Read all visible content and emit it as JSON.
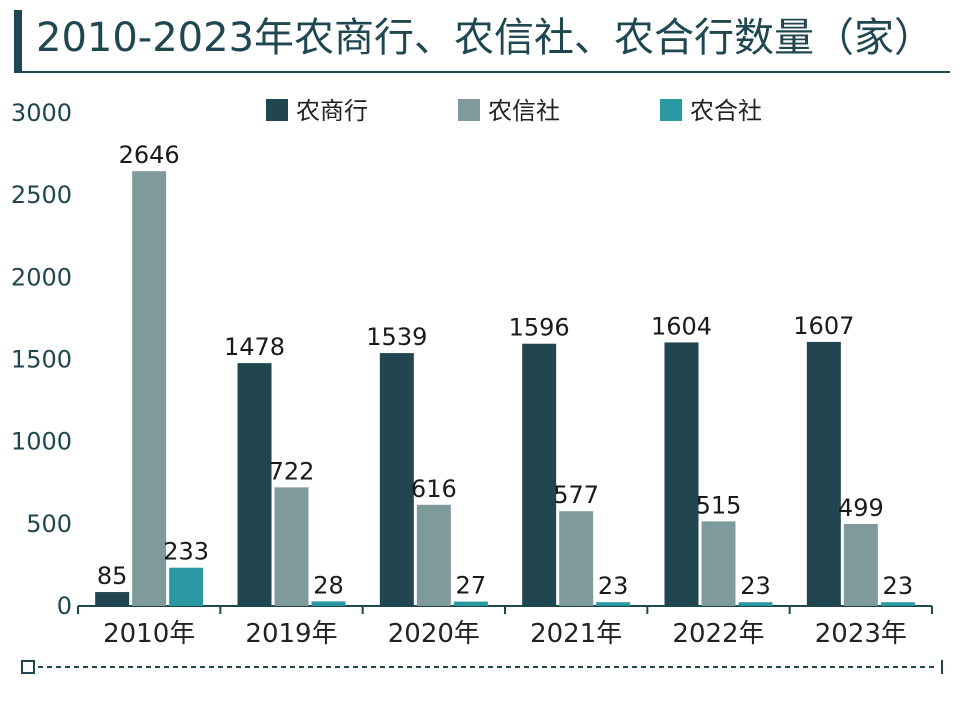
{
  "title": "2010-2023年农商行、农信社、农合行数量（家）",
  "chart_data": {
    "type": "bar",
    "title": "2010-2023年农商行、农信社、农合行数量（家）",
    "xlabel": "",
    "ylabel": "",
    "categories": [
      "2010年",
      "2019年",
      "2020年",
      "2021年",
      "2022年",
      "2023年"
    ],
    "series": [
      {
        "name": "农商行",
        "color": "#224650",
        "values": [
          85,
          1478,
          1539,
          1596,
          1604,
          1607
        ]
      },
      {
        "name": "农信社",
        "color": "#7f9a9b",
        "values": [
          2646,
          722,
          616,
          577,
          515,
          499
        ]
      },
      {
        "name": "农合社",
        "color": "#2a98a1",
        "values": [
          233,
          28,
          27,
          23,
          23,
          23
        ]
      }
    ],
    "ylim": [
      0,
      3000
    ],
    "yticks": [
      0,
      500,
      1000,
      1500,
      2000,
      2500,
      3000
    ],
    "grid": false,
    "legend_position": "top"
  }
}
